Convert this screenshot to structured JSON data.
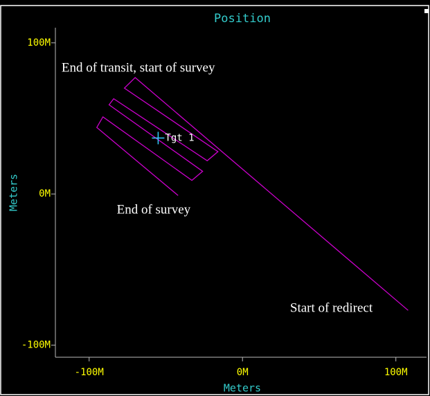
{
  "chart_data": {
    "type": "line",
    "title": "Position",
    "x_label": "Meters",
    "y_label": "Meters",
    "xlim": [
      -122,
      120
    ],
    "ylim": [
      -108,
      110
    ],
    "xticks": [
      {
        "value": -100,
        "label": "-100M"
      },
      {
        "value": 0,
        "label": "0M"
      },
      {
        "value": 100,
        "label": "100M"
      }
    ],
    "yticks": [
      {
        "value": -100,
        "label": "-100M"
      },
      {
        "value": 0,
        "label": "0M"
      },
      {
        "value": 100,
        "label": "100M"
      }
    ],
    "series": [
      {
        "color": "#cc00cc",
        "x": [
          108,
          -70,
          -77,
          -16,
          -23,
          -84,
          -87,
          -26,
          -33,
          -91,
          -95,
          -42
        ],
        "values": [
          -77,
          77,
          70,
          28,
          22,
          63,
          59,
          15,
          9,
          51,
          44,
          -1
        ]
      }
    ],
    "target": {
      "label": "Tgt 1",
      "x": -55,
      "y": 37,
      "color": "#33ccff"
    },
    "annotations": [
      {
        "text": "End of transit, start of survey",
        "x": -118,
        "y": 83
      },
      {
        "text": "End of survey",
        "x": -82,
        "y": -11
      },
      {
        "text": "Start of redirect",
        "x": 31,
        "y": -76
      }
    ]
  }
}
